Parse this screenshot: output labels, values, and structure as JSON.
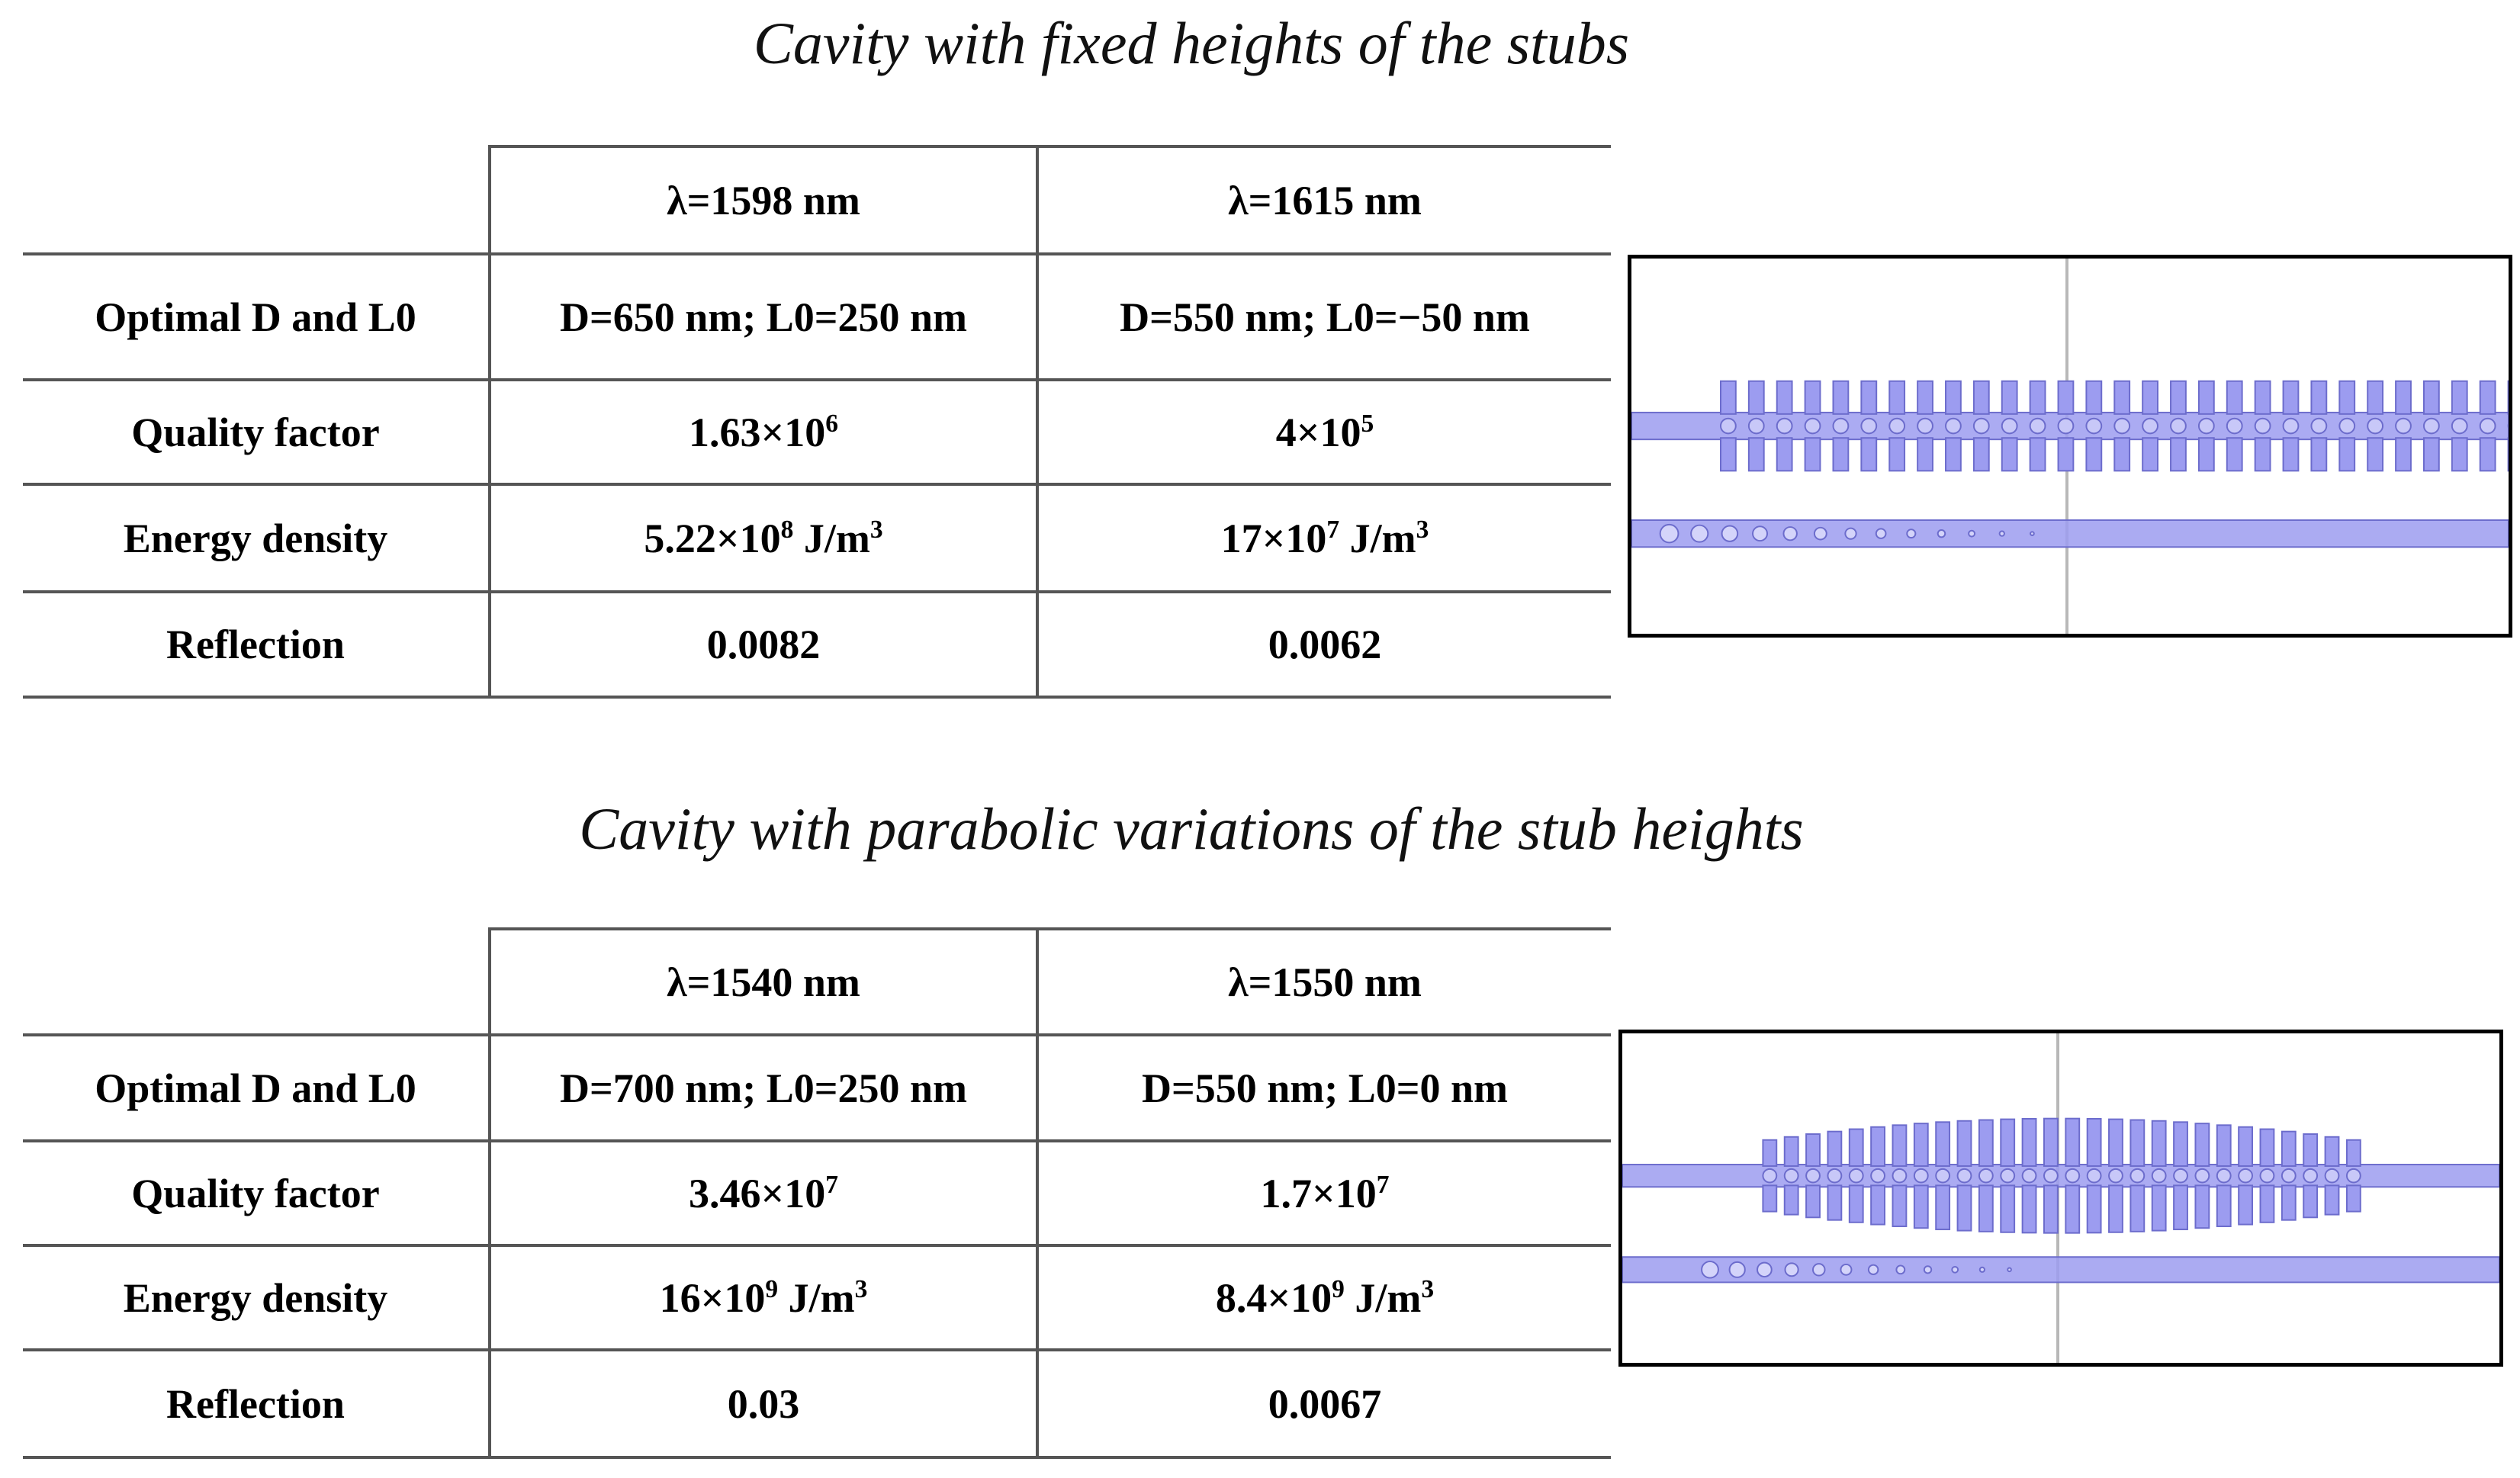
{
  "sections": [
    {
      "caption": "Cavity with fixed heights of the stubs",
      "table": {
        "header": [
          "",
          "λ=1598 nm",
          "λ=1615 nm"
        ],
        "rows": [
          {
            "label": "Optimal D and L0",
            "values": [
              "D=650 nm; L0=250 nm",
              "D=550 nm; L0=−50 nm"
            ]
          },
          {
            "label": "Quality  factor",
            "values": [
              {
                "base": "1.63×10",
                "exp": "6"
              },
              {
                "base": "4×10",
                "exp": "5"
              }
            ]
          },
          {
            "label": "Energy density",
            "values": [
              {
                "base": "5.22×10",
                "exp": "8",
                "unit": " J/m",
                "unit_exp": "3"
              },
              {
                "base": "17×10",
                "exp": "7",
                "unit": " J/m",
                "unit_exp": "3"
              }
            ]
          },
          {
            "label": "Reflection",
            "values": [
              "0.0082",
              "0.0062"
            ]
          }
        ]
      },
      "figure": {
        "variant": "fixed",
        "stub_count": 30,
        "hole_count": 13,
        "fill_color": "#9c9cf0",
        "stroke_color": "#6c6ccc"
      }
    },
    {
      "caption": "Cavity with parabolic variations of the stub heights",
      "table": {
        "header": [
          "",
          "λ=1540 nm",
          "λ=1550 nm"
        ],
        "rows": [
          {
            "label": "Optimal D and L0",
            "values": [
              "D=700 nm; L0=250 nm",
              "D=550 nm; L0=0 nm"
            ]
          },
          {
            "label": "Quality  factor",
            "values": [
              {
                "base": "3.46×10",
                "exp": "7"
              },
              {
                "base": "1.7×10",
                "exp": "7"
              }
            ]
          },
          {
            "label": "Energy density",
            "values": [
              {
                "base": "16×10",
                "exp": "9",
                "unit": " J/m",
                "unit_exp": "3"
              },
              {
                "base": "8.4×10",
                "exp": "9",
                "unit": " J/m",
                "unit_exp": "3"
              }
            ]
          },
          {
            "label": "Reflection",
            "values": [
              "0.03",
              "0.0067"
            ]
          }
        ]
      },
      "figure": {
        "variant": "parabolic",
        "stub_count": 28,
        "hole_count": 12,
        "fill_color": "#9c9cf0",
        "stroke_color": "#6c6ccc"
      }
    }
  ]
}
